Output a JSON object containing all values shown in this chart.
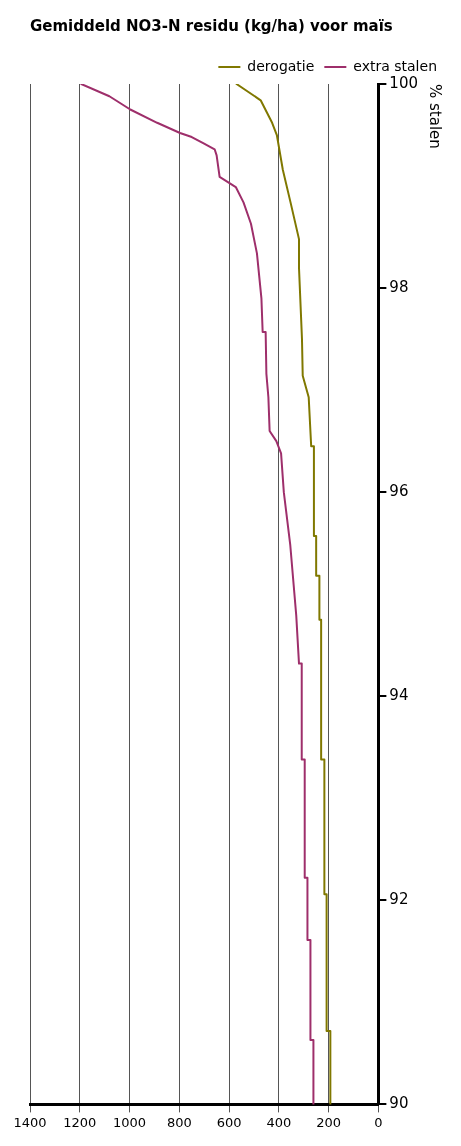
{
  "chart_data": {
    "type": "line",
    "title": "Gemiddeld NO3-N residu (kg/ha) voor maïs",
    "ylabel": "% stalen",
    "xlim": [
      1400,
      0
    ],
    "xticks": [
      0,
      200,
      400,
      600,
      800,
      1000,
      1200,
      1400
    ],
    "ylim": [
      90,
      100
    ],
    "yticks": [
      90,
      92,
      94,
      96,
      98,
      100
    ],
    "grid": "x",
    "legend": "top right",
    "marker": "none",
    "line_style": "solid",
    "series": [
      {
        "name": "derogatie",
        "color": "#807800",
        "values": [
          90,
          90.72,
          90.72,
          92.06,
          92.06,
          93.38,
          93.38,
          94.75,
          94.75,
          95.18,
          95.18,
          95.57,
          95.57,
          96.45,
          96.45,
          96.93,
          97.14,
          97.5,
          98.2,
          98.48,
          98.84,
          99.16,
          99.5,
          99.62,
          99.84,
          100
        ],
        "x": [
          193,
          193,
          208,
          208,
          217,
          217,
          230,
          230,
          237,
          237,
          250,
          250,
          259,
          259,
          270,
          280,
          304,
          307,
          319,
          319,
          353,
          384,
          408,
          427,
          473,
          570
        ]
      },
      {
        "name": "extra stalen",
        "color": "#9e2f6b",
        "values": [
          90,
          90.63,
          90.63,
          91.61,
          91.61,
          92.22,
          92.22,
          93.38,
          93.38,
          94.32,
          94.32,
          94.79,
          95.48,
          96.0,
          96.38,
          96.5,
          96.6,
          96.93,
          97.16,
          97.57,
          97.57,
          97.9,
          98.34,
          98.63,
          98.84,
          98.99,
          99.09,
          99.3,
          99.36,
          99.42,
          99.48,
          99.52,
          99.62,
          99.75,
          99.88,
          100
        ],
        "x": [
          261,
          261,
          273,
          273,
          285,
          285,
          296,
          296,
          308,
          308,
          319,
          330,
          354,
          380,
          391,
          410,
          437,
          442,
          450,
          453,
          465,
          470,
          488,
          512,
          542,
          573,
          638,
          650,
          658,
          704,
          750,
          797,
          889,
          997,
          1081,
          1194
        ]
      }
    ]
  }
}
